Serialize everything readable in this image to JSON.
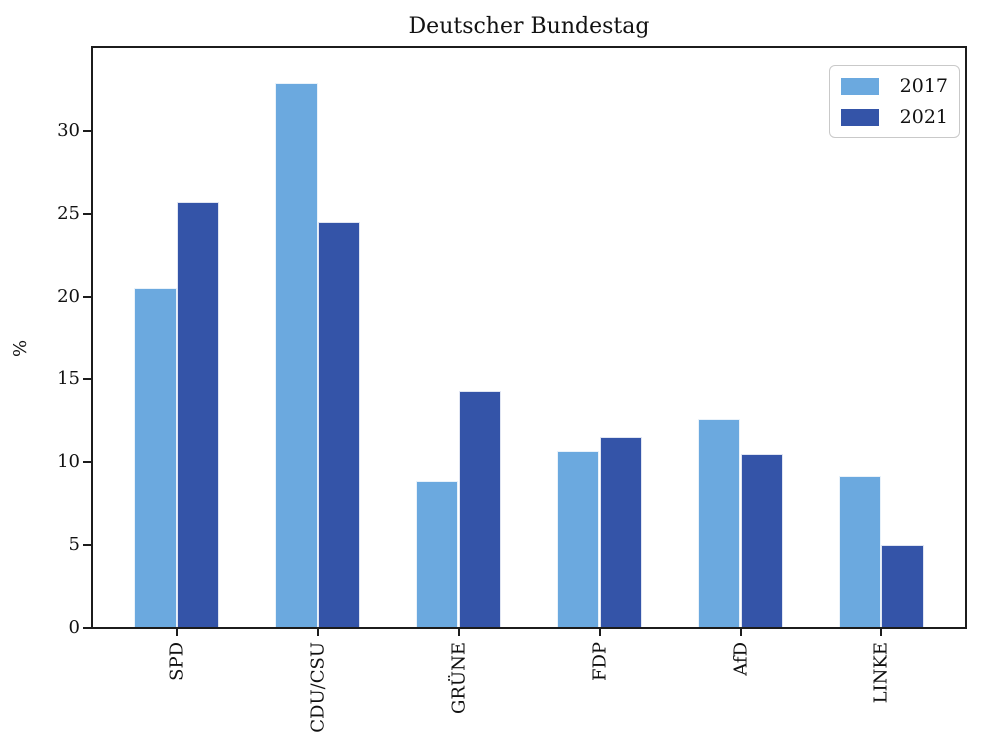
{
  "title": "Deutscher Bundestag",
  "ylabel": "%",
  "colors": {
    "series_2017": "#6BA9DF",
    "series_2021": "#3454A8",
    "axis": "#1c1c1c",
    "background": "#ffffff",
    "legend_border": "#c9c9c9"
  },
  "legend": {
    "position": "upper right",
    "items": [
      {
        "label": "2017",
        "swatch": "legend-swatch-2017"
      },
      {
        "label": "2021",
        "swatch": "legend-swatch-2021"
      }
    ]
  },
  "chart_data": {
    "type": "bar",
    "title": "Deutscher Bundestag",
    "categories": [
      "SPD",
      "CDU/CSU",
      "GRÜNE",
      "FDP",
      "AfD",
      "LINKE"
    ],
    "series": [
      {
        "name": "2017",
        "color": "#6BA9DF",
        "values": [
          20.5,
          32.9,
          8.9,
          10.7,
          12.6,
          9.2
        ]
      },
      {
        "name": "2021",
        "color": "#3454A8",
        "values": [
          25.7,
          24.5,
          14.3,
          11.5,
          10.5,
          5.0
        ]
      }
    ],
    "xlabel": "",
    "ylabel": "%",
    "ylim": [
      0,
      35
    ],
    "yticks": [
      0,
      5,
      10,
      15,
      20,
      25,
      30
    ],
    "xlim": [
      -0.6,
      5.6
    ],
    "bar_width": 0.3,
    "grid": false,
    "legend_position": "upper right"
  }
}
